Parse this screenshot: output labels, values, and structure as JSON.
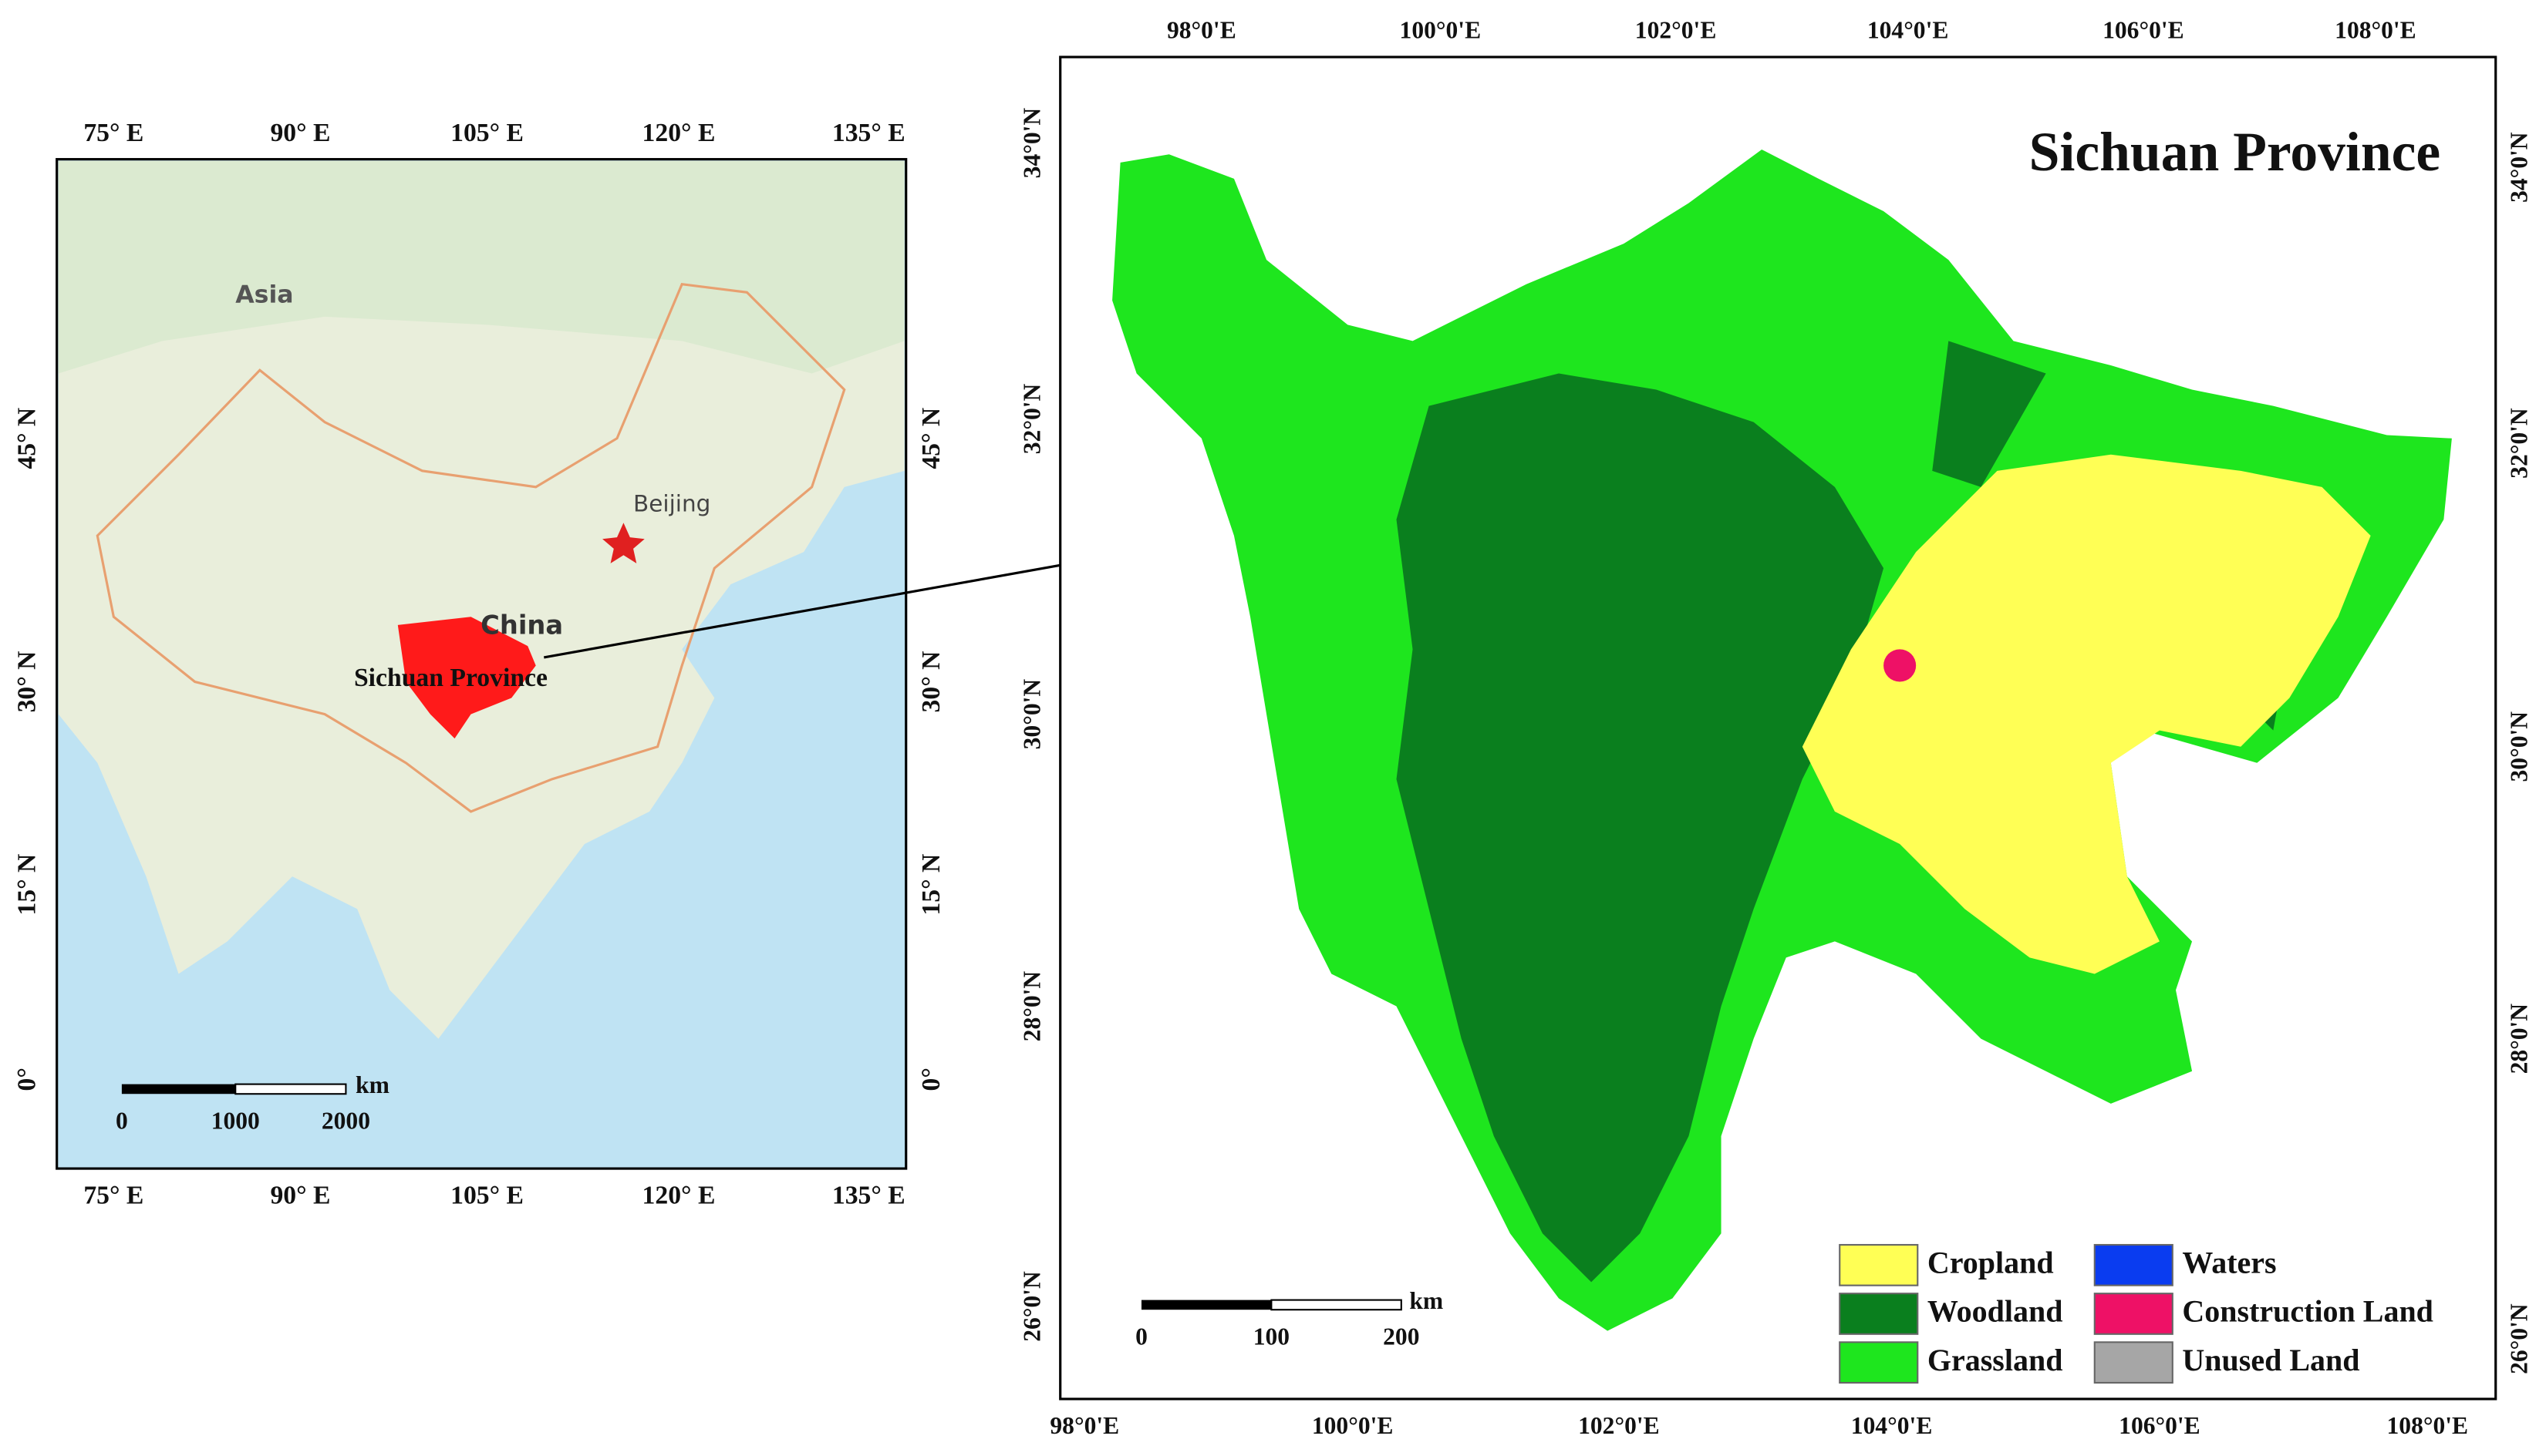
{
  "inset_map": {
    "top_labels": [
      "75° E",
      "90° E",
      "105° E",
      "120° E",
      "135° E"
    ],
    "bottom_labels": [
      "75° E",
      "90° E",
      "105° E",
      "120° E",
      "135° E"
    ],
    "left_labels": [
      "45° N",
      "30° N",
      "15° N",
      "0°"
    ],
    "right_labels": [
      "45° N",
      "30° N",
      "15° N",
      "0°"
    ],
    "place_labels": {
      "asia": "Asia",
      "beijing": "Beijing",
      "china": "China",
      "sichuan": "Sichuan Province"
    },
    "scale_bar": {
      "unit": "km",
      "labels": [
        "0",
        "1000",
        "2000"
      ]
    }
  },
  "main_map": {
    "title": "Sichuan Province",
    "top_labels": [
      "98°0'E",
      "100°0'E",
      "102°0'E",
      "104°0'E",
      "106°0'E",
      "108°0'E"
    ],
    "bottom_labels": [
      "98°0'E",
      "100°0'E",
      "102°0'E",
      "104°0'E",
      "106°0'E",
      "108°0'E"
    ],
    "left_labels": [
      "34°0'N",
      "32°0'N",
      "30°0'N",
      "28°0'N",
      "26°0'N"
    ],
    "right_labels": [
      "34°0'N",
      "32°0'N",
      "30°0'N",
      "28°0'N",
      "26°0'N"
    ],
    "scale_bar": {
      "unit": "km",
      "labels": [
        "0",
        "100",
        "200"
      ]
    },
    "legend": [
      {
        "label": "Cropland",
        "color": "#ffff55"
      },
      {
        "label": "Woodland",
        "color": "#0a7f1e"
      },
      {
        "label": "Grassland",
        "color": "#1ee61e"
      },
      {
        "label": "Waters",
        "color": "#0a3cf0"
      },
      {
        "label": "Construction Land",
        "color": "#ee1166"
      },
      {
        "label": "Unused Land",
        "color": "#a6a6a6"
      }
    ]
  }
}
